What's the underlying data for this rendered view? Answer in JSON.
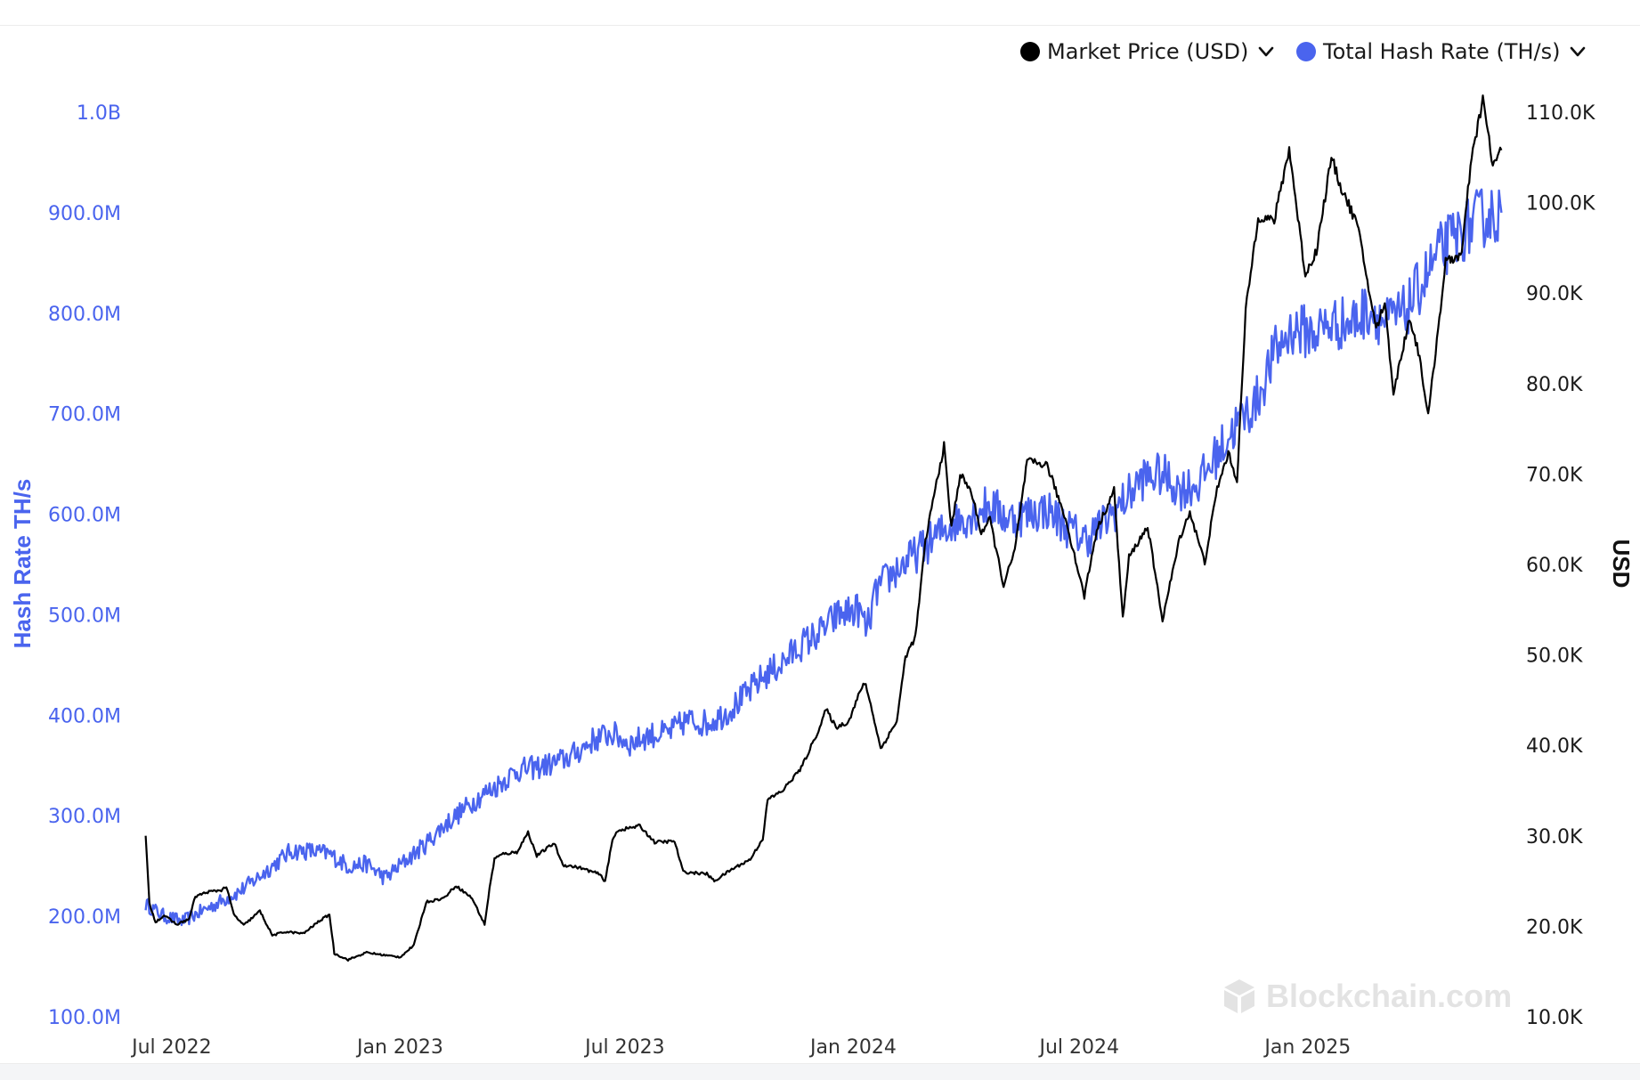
{
  "legend": {
    "price_label": "Market Price (USD)",
    "hash_label": "Total Hash Rate (TH/s)"
  },
  "watermark": "Blockchain.com",
  "colors": {
    "price": "#000000",
    "hash": "#4a64ee",
    "left_axis": "#4a64ee",
    "right_axis": "#1a1a1a"
  },
  "icons": {
    "legend_toggle": "chevron-down-icon",
    "logo": "blockchain-cube-icon"
  },
  "chart_data": {
    "type": "line",
    "title": "",
    "y_left_label": "Hash Rate TH/s",
    "y_right_label": "USD",
    "x_ticks": [
      {
        "label": "Jul 2022",
        "date": "2022-07-01"
      },
      {
        "label": "Jan 2023",
        "date": "2023-01-01"
      },
      {
        "label": "Jul 2023",
        "date": "2023-07-01"
      },
      {
        "label": "Jan 2024",
        "date": "2024-01-01"
      },
      {
        "label": "Jul 2024",
        "date": "2024-07-01"
      },
      {
        "label": "Jan 2025",
        "date": "2025-01-01"
      }
    ],
    "xlim": [
      "2022-06-06",
      "2025-06-10"
    ],
    "y_left": {
      "lim": [
        100000000,
        1000000000
      ],
      "ticks": [
        {
          "value": 100000000,
          "label": "100.0M"
        },
        {
          "value": 200000000,
          "label": "200.0M"
        },
        {
          "value": 300000000,
          "label": "300.0M"
        },
        {
          "value": 400000000,
          "label": "400.0M"
        },
        {
          "value": 500000000,
          "label": "500.0M"
        },
        {
          "value": 600000000,
          "label": "600.0M"
        },
        {
          "value": 700000000,
          "label": "700.0M"
        },
        {
          "value": 800000000,
          "label": "800.0M"
        },
        {
          "value": 900000000,
          "label": "900.0M"
        },
        {
          "value": 1000000000,
          "label": "1.0B"
        }
      ]
    },
    "y_right": {
      "lim": [
        10000,
        110000
      ],
      "ticks": [
        {
          "value": 10000,
          "label": "10.0K"
        },
        {
          "value": 20000,
          "label": "20.0K"
        },
        {
          "value": 30000,
          "label": "30.0K"
        },
        {
          "value": 40000,
          "label": "40.0K"
        },
        {
          "value": 50000,
          "label": "50.0K"
        },
        {
          "value": 60000,
          "label": "60.0K"
        },
        {
          "value": 70000,
          "label": "70.0K"
        },
        {
          "value": 80000,
          "label": "80.0K"
        },
        {
          "value": 90000,
          "label": "90.0K"
        },
        {
          "value": 100000,
          "label": "100.0K"
        },
        {
          "value": 110000,
          "label": "110.0K"
        }
      ]
    },
    "grid": false,
    "legend_position": "top-right",
    "series": [
      {
        "name": "Market Price (USD)",
        "axis": "right",
        "points": [
          [
            "2022-06-10",
            30000
          ],
          [
            "2022-06-13",
            22500
          ],
          [
            "2022-06-18",
            20500
          ],
          [
            "2022-06-25",
            21200
          ],
          [
            "2022-07-05",
            20200
          ],
          [
            "2022-07-15",
            20800
          ],
          [
            "2022-07-20",
            23300
          ],
          [
            "2022-07-30",
            23800
          ],
          [
            "2022-08-10",
            24000
          ],
          [
            "2022-08-14",
            24400
          ],
          [
            "2022-08-20",
            21300
          ],
          [
            "2022-08-28",
            20100
          ],
          [
            "2022-09-10",
            21700
          ],
          [
            "2022-09-20",
            19000
          ],
          [
            "2022-10-01",
            19400
          ],
          [
            "2022-10-15",
            19200
          ],
          [
            "2022-10-28",
            20600
          ],
          [
            "2022-11-05",
            21300
          ],
          [
            "2022-11-09",
            17000
          ],
          [
            "2022-11-20",
            16300
          ],
          [
            "2022-12-05",
            17100
          ],
          [
            "2022-12-20",
            16800
          ],
          [
            "2023-01-01",
            16600
          ],
          [
            "2023-01-12",
            17900
          ],
          [
            "2023-01-22",
            22700
          ],
          [
            "2023-02-05",
            23100
          ],
          [
            "2023-02-15",
            24500
          ],
          [
            "2023-02-28",
            23100
          ],
          [
            "2023-03-10",
            20200
          ],
          [
            "2023-03-14",
            24200
          ],
          [
            "2023-03-18",
            27500
          ],
          [
            "2023-03-25",
            28000
          ],
          [
            "2023-04-05",
            28200
          ],
          [
            "2023-04-14",
            30400
          ],
          [
            "2023-04-21",
            27800
          ],
          [
            "2023-05-05",
            29200
          ],
          [
            "2023-05-12",
            26800
          ],
          [
            "2023-05-25",
            26500
          ],
          [
            "2023-06-10",
            25800
          ],
          [
            "2023-06-15",
            25000
          ],
          [
            "2023-06-21",
            29500
          ],
          [
            "2023-06-25",
            30600
          ],
          [
            "2023-07-13",
            31100
          ],
          [
            "2023-07-25",
            29300
          ],
          [
            "2023-08-10",
            29400
          ],
          [
            "2023-08-17",
            26000
          ],
          [
            "2023-09-05",
            25800
          ],
          [
            "2023-09-11",
            25000
          ],
          [
            "2023-09-25",
            26300
          ],
          [
            "2023-10-10",
            27400
          ],
          [
            "2023-10-20",
            29700
          ],
          [
            "2023-10-24",
            34000
          ],
          [
            "2023-11-05",
            35000
          ],
          [
            "2023-11-20",
            37500
          ],
          [
            "2023-12-05",
            42000
          ],
          [
            "2023-12-10",
            44000
          ],
          [
            "2023-12-18",
            42000
          ],
          [
            "2023-12-28",
            42600
          ],
          [
            "2024-01-08",
            46500
          ],
          [
            "2024-01-11",
            46800
          ],
          [
            "2024-01-20",
            41500
          ],
          [
            "2024-01-23",
            39600
          ],
          [
            "2024-02-05",
            42700
          ],
          [
            "2024-02-12",
            49800
          ],
          [
            "2024-02-20",
            52000
          ],
          [
            "2024-02-28",
            62500
          ],
          [
            "2024-03-05",
            67000
          ],
          [
            "2024-03-14",
            73100
          ],
          [
            "2024-03-20",
            64000
          ],
          [
            "2024-03-27",
            70000
          ],
          [
            "2024-04-05",
            68000
          ],
          [
            "2024-04-13",
            63500
          ],
          [
            "2024-04-20",
            65000
          ],
          [
            "2024-05-01",
            57700
          ],
          [
            "2024-05-10",
            61500
          ],
          [
            "2024-05-20",
            71400
          ],
          [
            "2024-06-05",
            71000
          ],
          [
            "2024-06-20",
            65000
          ],
          [
            "2024-07-05",
            56500
          ],
          [
            "2024-07-15",
            63800
          ],
          [
            "2024-07-29",
            68200
          ],
          [
            "2024-08-05",
            54000
          ],
          [
            "2024-08-10",
            60800
          ],
          [
            "2024-08-25",
            64200
          ],
          [
            "2024-09-06",
            53900
          ],
          [
            "2024-09-20",
            63000
          ],
          [
            "2024-09-28",
            65800
          ],
          [
            "2024-10-10",
            60200
          ],
          [
            "2024-10-20",
            68400
          ],
          [
            "2024-10-29",
            72300
          ],
          [
            "2024-11-05",
            69300
          ],
          [
            "2024-11-12",
            88000
          ],
          [
            "2024-11-22",
            98500
          ],
          [
            "2024-12-05",
            98000
          ],
          [
            "2024-12-17",
            106000
          ],
          [
            "2024-12-30",
            92000
          ],
          [
            "2025-01-08",
            94700
          ],
          [
            "2025-01-20",
            105000
          ],
          [
            "2025-01-27",
            102000
          ],
          [
            "2025-02-10",
            97500
          ],
          [
            "2025-02-25",
            86000
          ],
          [
            "2025-03-04",
            89000
          ],
          [
            "2025-03-11",
            79000
          ],
          [
            "2025-03-24",
            87300
          ],
          [
            "2025-04-01",
            83000
          ],
          [
            "2025-04-08",
            76300
          ],
          [
            "2025-04-22",
            93400
          ],
          [
            "2025-05-05",
            94300
          ],
          [
            "2025-05-12",
            104000
          ],
          [
            "2025-05-22",
            111500
          ],
          [
            "2025-05-30",
            104000
          ],
          [
            "2025-06-04",
            105500
          ],
          [
            "2025-06-06",
            105800
          ]
        ]
      },
      {
        "name": "Total Hash Rate (TH/s)",
        "axis": "left",
        "points": [
          [
            "2022-06-10",
            212000000
          ],
          [
            "2022-06-25",
            200000000
          ],
          [
            "2022-07-10",
            195000000
          ],
          [
            "2022-07-25",
            205000000
          ],
          [
            "2022-08-10",
            215000000
          ],
          [
            "2022-08-25",
            225000000
          ],
          [
            "2022-09-10",
            240000000
          ],
          [
            "2022-09-25",
            255000000
          ],
          [
            "2022-10-05",
            265000000
          ],
          [
            "2022-10-20",
            265000000
          ],
          [
            "2022-11-05",
            262000000
          ],
          [
            "2022-11-20",
            250000000
          ],
          [
            "2022-12-05",
            252000000
          ],
          [
            "2022-12-20",
            238000000
          ],
          [
            "2023-01-05",
            255000000
          ],
          [
            "2023-01-20",
            270000000
          ],
          [
            "2023-02-05",
            290000000
          ],
          [
            "2023-02-20",
            305000000
          ],
          [
            "2023-03-05",
            318000000
          ],
          [
            "2023-03-20",
            330000000
          ],
          [
            "2023-04-05",
            345000000
          ],
          [
            "2023-04-20",
            348000000
          ],
          [
            "2023-05-05",
            352000000
          ],
          [
            "2023-05-20",
            360000000
          ],
          [
            "2023-06-05",
            375000000
          ],
          [
            "2023-06-20",
            382000000
          ],
          [
            "2023-07-05",
            372000000
          ],
          [
            "2023-07-20",
            380000000
          ],
          [
            "2023-08-05",
            382000000
          ],
          [
            "2023-08-20",
            395000000
          ],
          [
            "2023-09-05",
            392000000
          ],
          [
            "2023-09-20",
            402000000
          ],
          [
            "2023-10-05",
            418000000
          ],
          [
            "2023-10-20",
            438000000
          ],
          [
            "2023-11-05",
            452000000
          ],
          [
            "2023-11-20",
            470000000
          ],
          [
            "2023-12-05",
            482000000
          ],
          [
            "2023-12-20",
            500000000
          ],
          [
            "2024-01-05",
            505000000
          ],
          [
            "2024-01-12",
            485000000
          ],
          [
            "2024-01-20",
            525000000
          ],
          [
            "2024-02-05",
            545000000
          ],
          [
            "2024-02-20",
            560000000
          ],
          [
            "2024-03-05",
            575000000
          ],
          [
            "2024-03-20",
            590000000
          ],
          [
            "2024-04-05",
            600000000
          ],
          [
            "2024-04-20",
            610000000
          ],
          [
            "2024-05-05",
            595000000
          ],
          [
            "2024-05-20",
            600000000
          ],
          [
            "2024-06-05",
            605000000
          ],
          [
            "2024-06-20",
            588000000
          ],
          [
            "2024-07-05",
            575000000
          ],
          [
            "2024-07-20",
            590000000
          ],
          [
            "2024-08-05",
            612000000
          ],
          [
            "2024-08-20",
            635000000
          ],
          [
            "2024-09-05",
            640000000
          ],
          [
            "2024-09-20",
            625000000
          ],
          [
            "2024-10-05",
            630000000
          ],
          [
            "2024-10-20",
            660000000
          ],
          [
            "2024-11-05",
            690000000
          ],
          [
            "2024-11-20",
            710000000
          ],
          [
            "2024-12-05",
            760000000
          ],
          [
            "2024-12-20",
            785000000
          ],
          [
            "2025-01-05",
            780000000
          ],
          [
            "2025-01-20",
            790000000
          ],
          [
            "2025-02-05",
            790000000
          ],
          [
            "2025-02-20",
            805000000
          ],
          [
            "2025-03-05",
            790000000
          ],
          [
            "2025-03-20",
            800000000
          ],
          [
            "2025-04-05",
            835000000
          ],
          [
            "2025-04-20",
            865000000
          ],
          [
            "2025-05-05",
            880000000
          ],
          [
            "2025-05-20",
            895000000
          ],
          [
            "2025-06-06",
            900000000
          ]
        ]
      }
    ]
  }
}
